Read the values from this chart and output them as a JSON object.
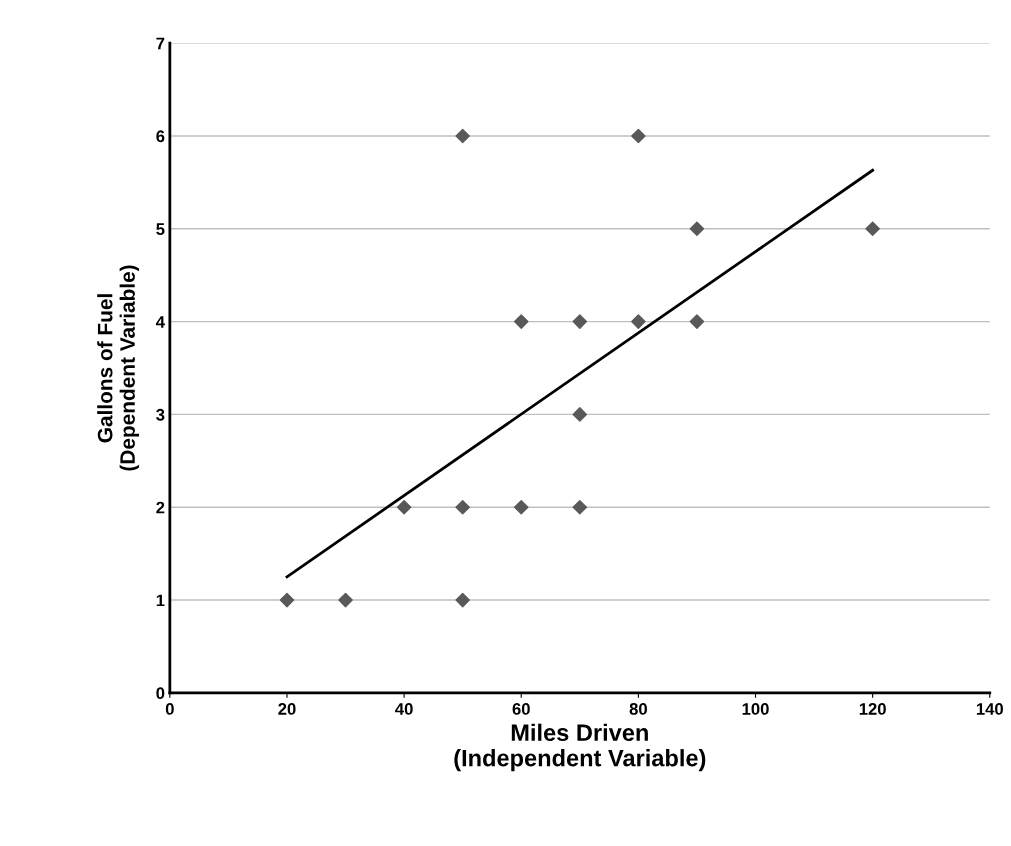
{
  "chart_data": {
    "type": "scatter",
    "xlabel": "Miles Driven\n(Independent Variable)",
    "ylabel": "Gallons of Fuel\n(Dependent Variable)",
    "xlim": [
      0,
      140
    ],
    "xticks": [
      0,
      20,
      40,
      60,
      80,
      100,
      120,
      140
    ],
    "ylim": [
      0,
      7
    ],
    "yticks": [
      0,
      1,
      2,
      3,
      4,
      5,
      6,
      7
    ],
    "grid": "y",
    "legend": false,
    "series": [
      {
        "color": "#595959",
        "marker": "diamond",
        "x": [
          20,
          30,
          50,
          40,
          50,
          60,
          70,
          70,
          60,
          70,
          80,
          90,
          90,
          120,
          50,
          80
        ],
        "values": [
          1,
          1,
          1,
          2,
          2,
          2,
          2,
          3,
          4,
          4,
          4,
          4,
          5,
          5,
          6,
          6
        ]
      },
      {
        "type": "line",
        "color": "#000000",
        "marker": "none",
        "line_style": "solid",
        "x": [
          20,
          120
        ],
        "values": [
          1.25,
          5.63
        ]
      }
    ]
  }
}
